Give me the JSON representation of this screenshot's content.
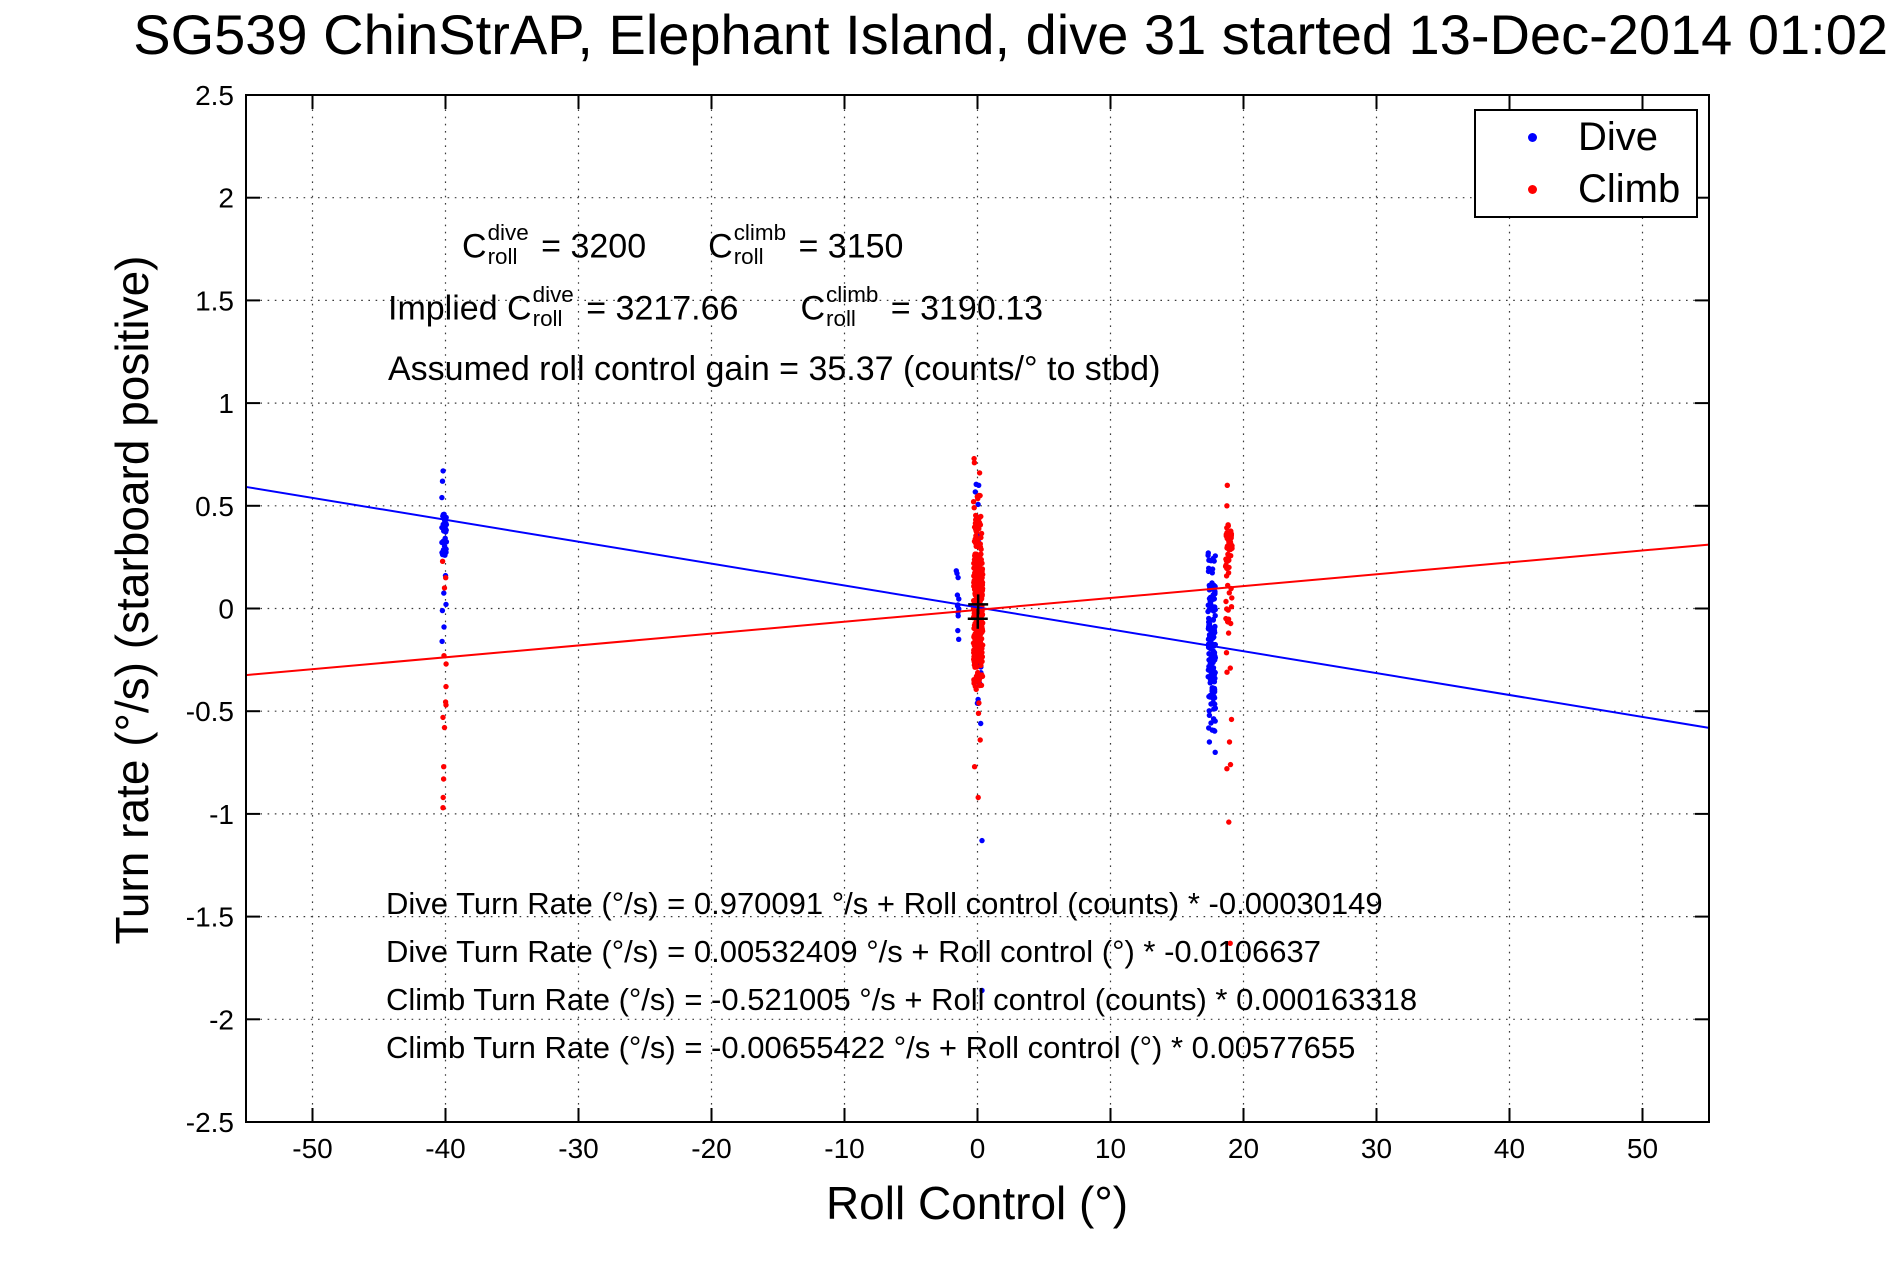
{
  "chart_data": {
    "type": "scatter",
    "title": "SG539 ChinStrAP, Elephant Island, dive 31 started 13-Dec-2014 01:02",
    "xlabel": "Roll Control (°)",
    "ylabel": "Turn rate (°/s) (starboard positive)",
    "xlim": [
      -55,
      55
    ],
    "ylim": [
      -2.5,
      2.5
    ],
    "xticks": [
      -50,
      -40,
      -30,
      -20,
      -10,
      0,
      10,
      20,
      30,
      40,
      50
    ],
    "yticks": [
      -2.5,
      -2,
      -1.5,
      -1,
      -0.5,
      0,
      0.5,
      1,
      1.5,
      2,
      2.5
    ],
    "grid": true,
    "legend": {
      "position": "top-right",
      "entries": [
        {
          "label": "Dive",
          "color": "#0000ff"
        },
        {
          "label": "Climb",
          "color": "#ff0000"
        }
      ]
    },
    "fit_lines": [
      {
        "series": "dive",
        "color": "#0000ff",
        "intercept_deg_s": 0.00532409,
        "slope_per_deg": -0.0106637
      },
      {
        "series": "climb",
        "color": "#ff0000",
        "intercept_deg_s": -0.00655422,
        "slope_per_deg": 0.00577655
      }
    ],
    "origin_markers": [
      {
        "x": 0.05,
        "y": 0.02
      },
      {
        "x": 0.02,
        "y": -0.05
      }
    ],
    "clusters": [
      {
        "series": "dive",
        "color": "#0000ff",
        "cx": -40.1,
        "jx": 0.18,
        "bands": [
          {
            "y0": 0.25,
            "y1": 0.46,
            "n": 34
          }
        ],
        "ys": [
          0.67,
          0.62,
          0.54,
          0.16,
          0.075,
          0.02,
          -0.01,
          -0.09,
          -0.16
        ]
      },
      {
        "series": "dive",
        "color": "#0000ff",
        "cx": -1.5,
        "jx": 0.1,
        "bands": [
          {
            "y0": -0.2,
            "y1": 0.22,
            "n": 12
          }
        ],
        "ys": []
      },
      {
        "series": "dive",
        "color": "#0000ff",
        "cx": 0.05,
        "jx": 0.22,
        "bands": [
          {
            "y0": 0.3,
            "y1": 0.62,
            "n": 9
          },
          {
            "y0": -0.27,
            "y1": 0.3,
            "n": 22
          },
          {
            "y0": -0.5,
            "y1": -0.19,
            "n": 10
          }
        ],
        "ys": [
          -0.56,
          0.6
        ]
      },
      {
        "series": "dive",
        "color": "#0000ff",
        "cx": 17.6,
        "jx": 0.28,
        "bands": [
          {
            "y0": -0.494,
            "y1": 0.124,
            "n": 140
          },
          {
            "y0": 0.124,
            "y1": 0.27,
            "n": 10
          },
          {
            "y0": -0.62,
            "y1": -0.494,
            "n": 9
          }
        ],
        "ys": [
          -0.65,
          -0.7,
          0.27
        ]
      },
      {
        "series": "climb",
        "color": "#ff0000",
        "cx": -40.1,
        "jx": 0.18,
        "bands": [],
        "ys": [
          0.23,
          0.15,
          0.1,
          -0.23,
          -0.27,
          -0.38,
          -0.455,
          -0.47,
          -0.53,
          -0.58,
          -0.77,
          -0.83,
          -0.92,
          -0.97
        ]
      },
      {
        "series": "climb",
        "color": "#ff0000",
        "cx": 0.05,
        "jx": 0.35,
        "bands": [
          {
            "y0": -0.27,
            "y1": 0.27,
            "n": 300
          },
          {
            "y0": 0.27,
            "y1": 0.44,
            "n": 28
          },
          {
            "y0": -0.4,
            "y1": -0.27,
            "n": 22
          },
          {
            "y0": 0.44,
            "y1": 0.55,
            "n": 6
          }
        ],
        "ys": [
          0.73,
          0.71,
          0.66,
          0.55,
          0.52,
          -0.46,
          -0.51,
          -0.64,
          -0.77,
          -0.92
        ]
      },
      {
        "series": "climb",
        "color": "#ff0000",
        "cx": 18.9,
        "jx": 0.25,
        "bands": [
          {
            "y0": 0.196,
            "y1": 0.415,
            "n": 40
          },
          {
            "y0": -0.09,
            "y1": 0.196,
            "n": 16
          }
        ],
        "ys": [
          0.6,
          0.5,
          -0.12,
          -0.215,
          -0.29,
          -0.31,
          -0.54,
          -0.65,
          -0.76,
          -0.78,
          -1.04
        ]
      }
    ],
    "extra_points": [
      {
        "color": "#0000ff",
        "x": 0.34,
        "y": -1.13
      },
      {
        "color": "#0000ff",
        "x": 0.34,
        "y": -1.86
      },
      {
        "color": "#ff0000",
        "x": 19.0,
        "y": -1.63
      }
    ]
  },
  "annotations": {
    "lines": [
      {
        "x": 462,
        "y": 225,
        "segments": [
          {
            "t": "txt",
            "v": "C"
          },
          {
            "t": "ss",
            "sup": "dive",
            "sub": "roll"
          },
          {
            "t": "txt",
            "v": " = 3200"
          },
          {
            "t": "gap"
          },
          {
            "t": "txt",
            "v": "C"
          },
          {
            "t": "ss",
            "sup": "climb",
            "sub": "roll"
          },
          {
            "t": "txt",
            "v": " = 3150"
          }
        ]
      },
      {
        "x": 388,
        "y": 287,
        "segments": [
          {
            "t": "txt",
            "v": "Implied C"
          },
          {
            "t": "ss",
            "sup": "dive",
            "sub": "roll"
          },
          {
            "t": "txt",
            "v": " = 3217.66"
          },
          {
            "t": "gap"
          },
          {
            "t": "txt",
            "v": "C"
          },
          {
            "t": "ss",
            "sup": "climb",
            "sub": "roll"
          },
          {
            "t": "txt",
            "v": " = 3190.13"
          }
        ]
      },
      {
        "x": 388,
        "y": 352,
        "segments": [
          {
            "t": "txt",
            "v": "Assumed roll control gain = 35.37 (counts/° to stbd)"
          }
        ]
      }
    ]
  },
  "equations": [
    "Dive Turn Rate (°/s) = 0.970091 °/s + Roll control (counts) * -0.00030149",
    "Dive Turn Rate (°/s) = 0.00532409 °/s + Roll control (°) * -0.0106637",
    "Climb Turn Rate (°/s) = -0.521005 °/s + Roll control (counts) * 0.000163318",
    "Climb Turn Rate (°/s) = -0.00655422 °/s + Roll control (°) * 0.00577655"
  ],
  "colors": {
    "dive": "#0000ff",
    "climb": "#ff0000",
    "axis": "#000000",
    "grid": "#3a3a3a"
  }
}
